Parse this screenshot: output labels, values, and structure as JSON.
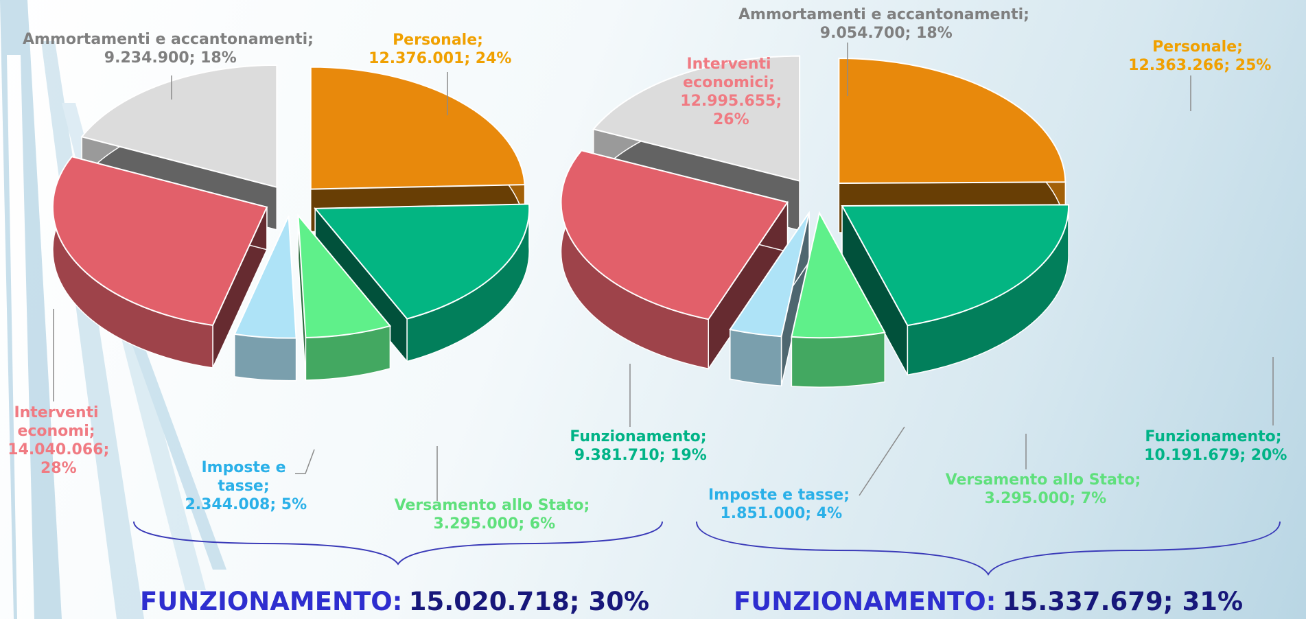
{
  "chart_data": [
    {
      "type": "pie",
      "categories": [
        "Personale;",
        "Funzionamento;",
        "Versamento allo Stato;",
        "Imposte e tasse;",
        "Interventi economi;",
        "Ammortamenti e accantonamenti;"
      ],
      "values": [
        12376001,
        9381710,
        3295000,
        2344008,
        14040066,
        9234900
      ],
      "value_labels": [
        "12.376.001; 24%",
        "9.381.710; 19%",
        "3.295.000; 6%",
        "2.344.008; 5%",
        "14.040.066; 28%",
        "9.234.900; 18%"
      ],
      "colors": [
        "#e8890c",
        "#03b582",
        "#5ff08a",
        "#aee3f7",
        "#e2606a",
        "#dcdcdc"
      ],
      "label_colors": [
        "#f0a000",
        "#00b386",
        "#5fe07c",
        "#2ab0e8",
        "#f07a82",
        "#7f7f7f"
      ],
      "total": {
        "label": "FUNZIONAMENTO:",
        "text": "15.020.718; 30%"
      }
    },
    {
      "type": "pie",
      "categories": [
        "Personale;",
        "Funzionamento;",
        "Versamento allo Stato;",
        "Imposte e tasse;",
        "Interventi economici;",
        "Ammortamenti e accantonamenti;"
      ],
      "values": [
        12363266,
        10191679,
        3295000,
        1851000,
        12995655,
        9054700
      ],
      "value_labels": [
        "12.363.266; 25%",
        "10.191.679; 20%",
        "3.295.000; 7%",
        "1.851.000; 4%",
        "12.995.655; 26%",
        "9.054.700; 18%"
      ],
      "colors": [
        "#e8890c",
        "#03b582",
        "#5ff08a",
        "#aee3f7",
        "#e2606a",
        "#dcdcdc"
      ],
      "label_colors": [
        "#f0a000",
        "#00b386",
        "#5fe07c",
        "#2ab0e8",
        "#f07a82",
        "#7f7f7f"
      ],
      "total": {
        "label": "FUNZIONAMENTO:",
        "text": "15.337.679; 31%"
      }
    }
  ]
}
